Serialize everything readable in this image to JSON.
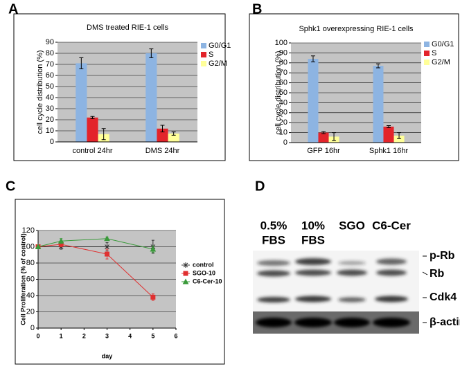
{
  "panel_labels": [
    "A",
    "B",
    "C",
    "D"
  ],
  "chart_data": [
    {
      "type": "bar",
      "title": "DMS treated RIE-1 cells",
      "y_label": "cell cycle distribution (%)",
      "categories": [
        "control 24hr",
        "DMS 24hr"
      ],
      "series": [
        {
          "name": "G0/G1",
          "color": "#8db4e2",
          "values": [
            71,
            80
          ],
          "errors": [
            5,
            4
          ]
        },
        {
          "name": "S",
          "color": "#e3242b",
          "values": [
            22,
            12
          ],
          "errors": [
            1,
            3
          ]
        },
        {
          "name": "G2/M",
          "color": "#ffff99",
          "values": [
            7,
            7.5
          ],
          "errors": [
            5,
            1.5
          ]
        }
      ],
      "ylim": [
        0,
        90
      ],
      "yticks": [
        0,
        10,
        20,
        30,
        40,
        50,
        60,
        70,
        80,
        90
      ],
      "grid": true
    },
    {
      "type": "bar",
      "title": "Sphk1 overexpressing RIE-1 cells",
      "y_label": "cell cycle distribution (%)",
      "categories": [
        "GFP 16hr",
        "Sphk1 16hr"
      ],
      "series": [
        {
          "name": "G0/G1",
          "color": "#8db4e2",
          "values": [
            84,
            77
          ],
          "errors": [
            3,
            2
          ]
        },
        {
          "name": "S",
          "color": "#e3242b",
          "values": [
            10,
            16
          ],
          "errors": [
            1,
            1
          ]
        },
        {
          "name": "G2/M",
          "color": "#ffff99",
          "values": [
            6,
            7
          ],
          "errors": [
            4,
            3
          ]
        }
      ],
      "ylim": [
        0,
        100
      ],
      "yticks": [
        0,
        10,
        20,
        30,
        40,
        50,
        60,
        70,
        80,
        90,
        100
      ],
      "grid": true
    },
    {
      "type": "line",
      "x_label": "day",
      "y_label": "Cell Proliferation (% of control)",
      "x": [
        0,
        1,
        3,
        5
      ],
      "series": [
        {
          "name": "control",
          "color": "#333333",
          "marker": "x",
          "values": [
            100,
            100,
            100,
            100
          ],
          "errors": [
            0,
            3,
            5,
            8
          ]
        },
        {
          "name": "SGO-10",
          "color": "#e03030",
          "marker": "square",
          "values": [
            100,
            103,
            91,
            38
          ],
          "errors": [
            0,
            3,
            6,
            4
          ]
        },
        {
          "name": "C6-Cer-10",
          "color": "#3a9a3a",
          "marker": "triangle",
          "values": [
            100,
            107,
            110,
            97
          ],
          "errors": [
            0,
            3,
            2,
            4
          ]
        }
      ],
      "xlim": [
        0,
        6
      ],
      "xticks": [
        0,
        1,
        2,
        3,
        4,
        5,
        6
      ],
      "ylim": [
        0,
        120
      ],
      "yticks": [
        0,
        20,
        40,
        60,
        80,
        100,
        120
      ],
      "grid": true
    }
  ],
  "blot": {
    "lanes": [
      [
        "0.5%",
        "FBS"
      ],
      [
        "10%",
        "FBS"
      ],
      [
        "SGO"
      ],
      [
        "C6-Cer"
      ]
    ],
    "bands": [
      "p-Rb",
      "Rb",
      "Cdk4",
      "β-actin"
    ]
  }
}
